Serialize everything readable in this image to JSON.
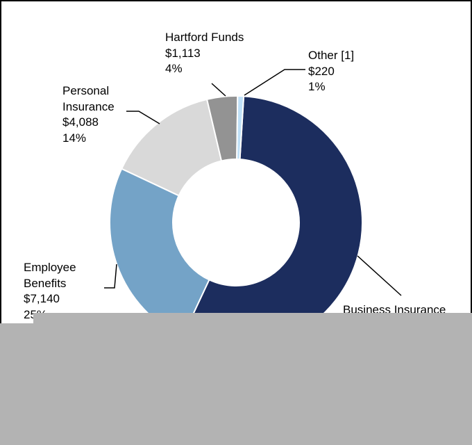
{
  "chart_data": {
    "type": "donut",
    "categories": [
      "Business Insurance",
      "Employee Benefits",
      "Personal Insurance",
      "Hartford Funds",
      "Other [1]"
    ],
    "values": [
      15990,
      7140,
      4088,
      1113,
      220
    ],
    "value_labels": [
      null,
      "$7,140",
      "$4,088",
      "$1,113",
      "$220"
    ],
    "percent_labels": [
      null,
      "25%",
      "14%",
      "4%",
      "1%"
    ],
    "colors": [
      "#1c2d5e",
      "#74a3c7",
      "#d9d9d9",
      "#939393",
      "#bfe0f7"
    ]
  }
}
